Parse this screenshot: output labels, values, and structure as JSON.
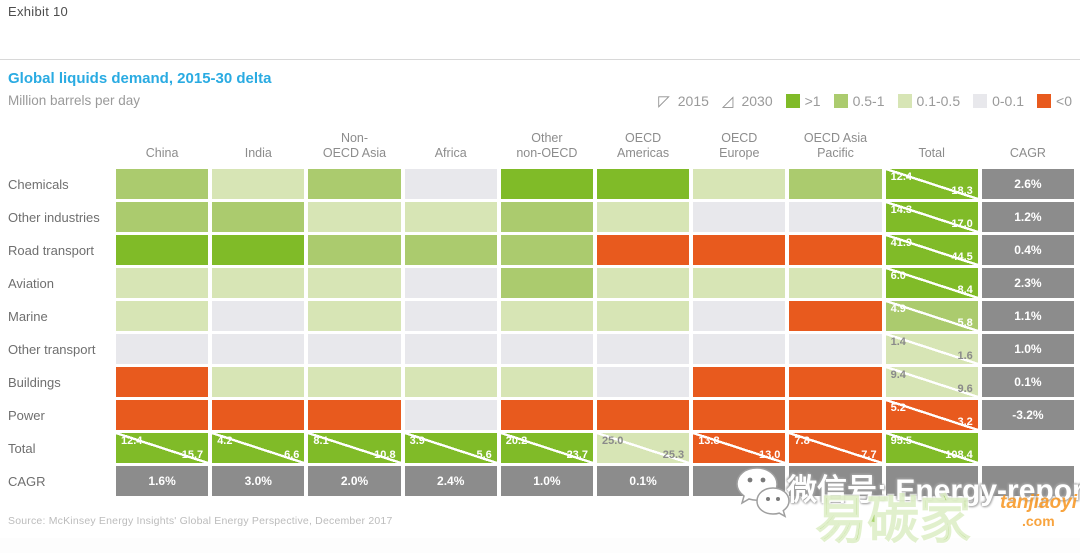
{
  "exhibit": "Exhibit 10",
  "title": "Global liquids demand, 2015-30 delta",
  "subtitle": "Million barrels per day",
  "legend": {
    "year_2015": "2015",
    "year_2030": "2030",
    "bins": [
      {
        "label": ">1",
        "color": "#80bb28"
      },
      {
        "label": "0.5-1",
        "color": "#abcb6e"
      },
      {
        "label": "0.1-0.5",
        "color": "#d7e5b5"
      },
      {
        "label": "0-0.1",
        "color": "#e8e8ec"
      },
      {
        "label": "<0",
        "color": "#e85a1e"
      }
    ]
  },
  "source": "Source: McKinsey Energy Insights' Global Energy Perspective, December 2017",
  "watermark": {
    "wechat_icon": "wechat-icon",
    "wechat_label": "微信号: Energy-report",
    "brand": "易碳家",
    "brand_sub": "tanjiaoyi",
    "brand_domain": ".com"
  },
  "chart_data": {
    "type": "heatmap",
    "title": "Global liquids demand, 2015-30 delta",
    "units": "Million barrels per day",
    "legend_bins": [
      ">1",
      "0.5-1",
      "0.1-0.5",
      "0-0.1",
      "<0"
    ],
    "columns": [
      "China",
      "India",
      "Non-\nOECD Asia",
      "Africa",
      "Other\nnon-OECD",
      "OECD\nAmericas",
      "OECD\nEurope",
      "OECD Asia\nPacific",
      "Total",
      "CAGR"
    ],
    "rows": [
      {
        "label": "Chemicals",
        "bins": [
          "0.5-1",
          "0.1-0.5",
          "0.5-1",
          "0-0.1",
          ">1",
          ">1",
          "0.1-0.5",
          "0.5-1"
        ],
        "total": {
          "v2015": "12.4",
          "v2030": "18.3",
          "bin": ">1"
        },
        "cagr": "2.6%"
      },
      {
        "label": "Other industries",
        "bins": [
          "0.5-1",
          "0.5-1",
          "0.1-0.5",
          "0.1-0.5",
          "0.5-1",
          "0.1-0.5",
          "0-0.1",
          "0-0.1"
        ],
        "total": {
          "v2015": "14.3",
          "v2030": "17.0",
          "bin": ">1"
        },
        "cagr": "1.2%"
      },
      {
        "label": "Road transport",
        "bins": [
          ">1",
          ">1",
          "0.5-1",
          "0.5-1",
          "0.5-1",
          "<0",
          "<0",
          "<0"
        ],
        "total": {
          "v2015": "41.9",
          "v2030": "44.5",
          "bin": ">1"
        },
        "cagr": "0.4%"
      },
      {
        "label": "Aviation",
        "bins": [
          "0.1-0.5",
          "0.1-0.5",
          "0.1-0.5",
          "0-0.1",
          "0.5-1",
          "0.1-0.5",
          "0.1-0.5",
          "0.1-0.5"
        ],
        "total": {
          "v2015": "6.0",
          "v2030": "8.4",
          "bin": ">1"
        },
        "cagr": "2.3%"
      },
      {
        "label": "Marine",
        "bins": [
          "0.1-0.5",
          "0-0.1",
          "0.1-0.5",
          "0-0.1",
          "0.1-0.5",
          "0.1-0.5",
          "0-0.1",
          "<0"
        ],
        "total": {
          "v2015": "4.9",
          "v2030": "5.8",
          "bin": "0.5-1"
        },
        "cagr": "1.1%"
      },
      {
        "label": "Other transport",
        "bins": [
          "0-0.1",
          "0-0.1",
          "0-0.1",
          "0-0.1",
          "0-0.1",
          "0-0.1",
          "0-0.1",
          "0-0.1"
        ],
        "total": {
          "v2015": "1.4",
          "v2030": "1.6",
          "bin": "0.1-0.5"
        },
        "cagr": "1.0%"
      },
      {
        "label": "Buildings",
        "bins": [
          "<0",
          "0.1-0.5",
          "0.1-0.5",
          "0.1-0.5",
          "0.1-0.5",
          "0-0.1",
          "<0",
          "<0"
        ],
        "total": {
          "v2015": "9.4",
          "v2030": "9.6",
          "bin": "0.1-0.5"
        },
        "cagr": "0.1%"
      },
      {
        "label": "Power",
        "bins": [
          "<0",
          "<0",
          "<0",
          "0-0.1",
          "<0",
          "<0",
          "<0",
          "<0"
        ],
        "total": {
          "v2015": "5.2",
          "v2030": "3.2",
          "bin": "<0"
        },
        "cagr": "-3.2%"
      }
    ],
    "total_row": {
      "label": "Total",
      "cells": [
        {
          "v2015": "12.4",
          "v2030": "15.7",
          "bin": ">1"
        },
        {
          "v2015": "4.2",
          "v2030": "6.6",
          "bin": ">1"
        },
        {
          "v2015": "8.1",
          "v2030": "10.8",
          "bin": ">1"
        },
        {
          "v2015": "3.9",
          "v2030": "5.6",
          "bin": ">1"
        },
        {
          "v2015": "20.2",
          "v2030": "23.7",
          "bin": ">1"
        },
        {
          "v2015": "25.0",
          "v2030": "25.3",
          "bin": "0.1-0.5"
        },
        {
          "v2015": "13.8",
          "v2030": "13.0",
          "bin": "<0"
        },
        {
          "v2015": "7.8",
          "v2030": "7.7",
          "bin": "<0"
        }
      ],
      "grand": {
        "v2015": "95.5",
        "v2030": "108.4",
        "bin": ">1"
      }
    },
    "cagr_row": {
      "label": "CAGR",
      "values": [
        "1.6%",
        "3.0%",
        "2.0%",
        "2.4%",
        "1.0%",
        "0.1%",
        "",
        "",
        "",
        ""
      ]
    }
  }
}
